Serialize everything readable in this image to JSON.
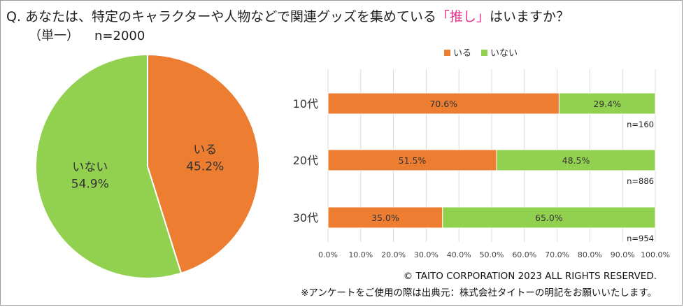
{
  "title": {
    "prefix": "Q.",
    "before": "あなたは、特定のキャラクターや人物などで関連グッズを集めている",
    "highlight": "「推し」",
    "after": "はいますか？",
    "subtitle_label": "（単一）",
    "subtitle_n": "n=2000"
  },
  "colors": {
    "iru": "#ed7d31",
    "inai": "#92d050",
    "grid": "#d9d9d9",
    "highlight": "#e8318a"
  },
  "chart_data": [
    {
      "type": "pie",
      "slices": [
        {
          "label": "いる",
          "value": 45.2,
          "display": "45.2%",
          "color": "#ed7d31"
        },
        {
          "label": "いない",
          "value": 54.9,
          "display": "54.9%",
          "color": "#92d050"
        }
      ]
    },
    {
      "type": "bar",
      "orientation": "horizontal",
      "stacked": true,
      "categories": [
        "10代",
        "20代",
        "30代"
      ],
      "n_labels": [
        "n=160",
        "n=886",
        "n=954"
      ],
      "series": [
        {
          "name": "いる",
          "values": [
            70.6,
            51.5,
            35.0
          ],
          "labels": [
            "70.6%",
            "51.5%",
            "35.0%"
          ],
          "color": "#ed7d31"
        },
        {
          "name": "いない",
          "values": [
            29.4,
            48.5,
            65.0
          ],
          "labels": [
            "29.4%",
            "48.5%",
            "65.0%"
          ],
          "color": "#92d050"
        }
      ],
      "xlim": [
        0,
        100
      ],
      "x_ticks": [
        "0.0%",
        "10.0%",
        "20.0%",
        "30.0%",
        "40.0%",
        "50.0%",
        "60.0%",
        "70.0%",
        "80.0%",
        "90.0%",
        "100.0%"
      ],
      "legend": [
        "いる",
        "いない"
      ],
      "legend_position": "top",
      "grid": true
    }
  ],
  "footer": {
    "copyright": "© TAITO  CORPORATION  2023 ALL RIGHTS  RESERVED.",
    "note": "※アンケートをご使用の際は出典元：株式会社タイトーの明記をお願いいたします。"
  }
}
